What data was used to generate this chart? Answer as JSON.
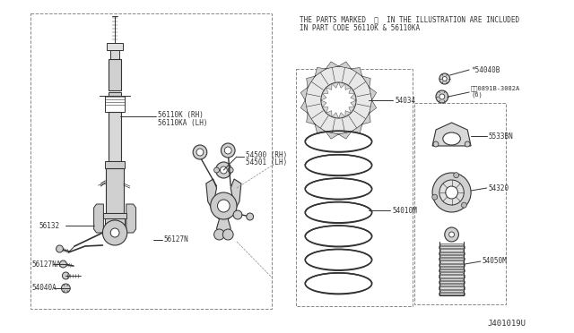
{
  "bg_color": "#ffffff",
  "part_color": "#333333",
  "note_line1": "THE PARTS MARKED  ※  IN THE ILLUSTRATION ARE INCLUDED",
  "note_line2": "IN PART CODE 56110K & 56110KA",
  "part_code": "J401019U",
  "labels": {
    "56110K_RH": "56110K (RH)",
    "56110KA_LH": "56110KA (LH)",
    "54500_RH": "54500 (RH)",
    "54501_LH": "54501 (LH)",
    "56132": "56132",
    "56127N": "56127N",
    "56127NA": "56127NA",
    "54040A": "54040A",
    "54034": "54034",
    "54010M": "54010M",
    "54040B": "*54040B",
    "0891B": "※ⓝ0891B-3082A\n(6)",
    "5533BN": "5533BN",
    "54320": "54320",
    "54050M": "54050M"
  }
}
